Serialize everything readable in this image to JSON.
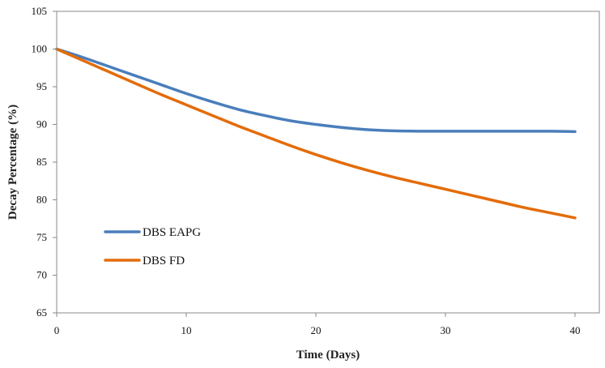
{
  "chart_data": {
    "type": "line",
    "title": "",
    "xlabel": "Time (Days)",
    "ylabel": "Decay Percentage (%)",
    "xlim": [
      0,
      40
    ],
    "ylim": [
      65,
      105
    ],
    "xticks": [
      0,
      10,
      20,
      30,
      40
    ],
    "yticks": [
      65,
      70,
      75,
      80,
      85,
      90,
      95,
      100,
      105
    ],
    "grid": false,
    "legend_position": "left-middle",
    "series": [
      {
        "name": "DBS EAPG",
        "color": "#4a7ebb",
        "x": [
          0,
          2,
          4,
          6,
          8,
          10,
          12,
          14,
          16,
          18,
          20,
          22,
          24,
          26,
          28,
          30,
          32,
          34,
          36,
          38,
          40
        ],
        "y": [
          100,
          98.9,
          97.7,
          96.5,
          95.3,
          94.1,
          93.0,
          92.0,
          91.2,
          90.5,
          90.0,
          89.6,
          89.3,
          89.15,
          89.1,
          89.1,
          89.1,
          89.1,
          89.1,
          89.1,
          89.05
        ]
      },
      {
        "name": "DBS FD",
        "color": "#e36c0a",
        "x": [
          0,
          2,
          4,
          6,
          8,
          10,
          12,
          14,
          16,
          18,
          20,
          22,
          24,
          26,
          28,
          30,
          32,
          34,
          36,
          38,
          40
        ],
        "y": [
          100,
          98.5,
          97.0,
          95.5,
          94.0,
          92.6,
          91.2,
          89.8,
          88.5,
          87.2,
          86.0,
          84.9,
          83.9,
          83.0,
          82.2,
          81.4,
          80.6,
          79.8,
          79.0,
          78.3,
          77.6
        ]
      }
    ]
  }
}
